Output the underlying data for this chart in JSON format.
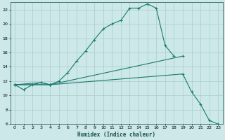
{
  "xlabel": "Humidex (Indice chaleur)",
  "bg_color": "#cce8e8",
  "grid_color": "#aacccc",
  "line_color": "#1a7a6e",
  "xlim": [
    -0.5,
    23.5
  ],
  "ylim": [
    6,
    23
  ],
  "yticks": [
    6,
    8,
    10,
    12,
    14,
    16,
    18,
    20,
    22
  ],
  "xticks": [
    0,
    1,
    2,
    3,
    4,
    5,
    6,
    7,
    8,
    9,
    10,
    11,
    12,
    13,
    14,
    15,
    16,
    17,
    18,
    19,
    20,
    21,
    22,
    23
  ],
  "line1_x": [
    0,
    1,
    2,
    3,
    4
  ],
  "line1_y": [
    11.5,
    10.8,
    11.5,
    11.8,
    11.5
  ],
  "line2_x": [
    0,
    3,
    4,
    5,
    6,
    7,
    8,
    9,
    10,
    11,
    12,
    13,
    14,
    15,
    16,
    17,
    18
  ],
  "line2_y": [
    11.5,
    11.8,
    11.5,
    12.0,
    13.2,
    14.8,
    16.2,
    17.8,
    19.3,
    20.0,
    20.5,
    22.2,
    22.2,
    22.8,
    22.2,
    17.0,
    15.5
  ],
  "line3_x": [
    0,
    4,
    19
  ],
  "line3_y": [
    11.5,
    11.5,
    15.5
  ],
  "line4_x": [
    0,
    4,
    19,
    20,
    21,
    22,
    23
  ],
  "line4_y": [
    11.5,
    11.5,
    13.0,
    10.5,
    8.8,
    6.5,
    6.0
  ]
}
